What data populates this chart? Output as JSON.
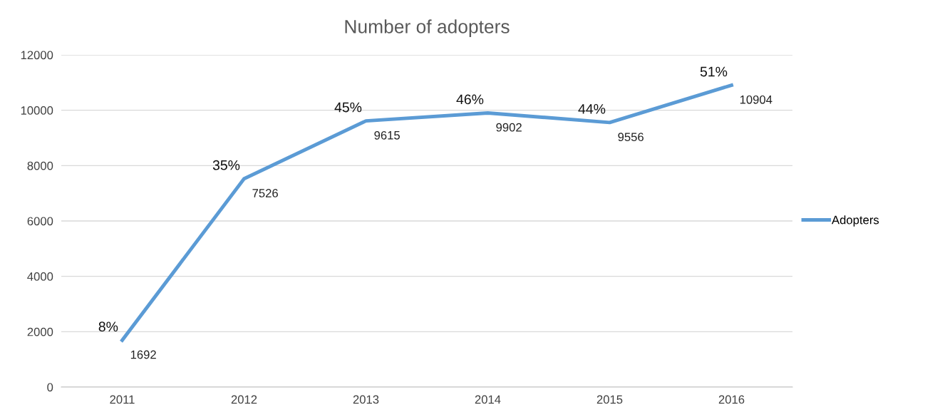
{
  "chart_data": {
    "type": "line",
    "title": "Number of adopters",
    "categories": [
      "2011",
      "2012",
      "2013",
      "2014",
      "2015",
      "2016"
    ],
    "series": [
      {
        "name": "Adopters",
        "color": "#5b9bd5",
        "values": [
          1692,
          7526,
          9615,
          9902,
          9556,
          10904
        ]
      }
    ],
    "ylim": [
      0,
      12000
    ],
    "yticks": [
      0,
      2000,
      4000,
      6000,
      8000,
      10000,
      12000
    ],
    "grid": "y",
    "legend": "right",
    "marker": "none",
    "line_style": "solid",
    "data_labels": true,
    "annotations": [
      {
        "text": "8%",
        "x": "2011",
        "y": 1692
      },
      {
        "text": "35%",
        "x": "2012",
        "y": 7526
      },
      {
        "text": "45%",
        "x": "2013",
        "y": 9615
      },
      {
        "text": "46%",
        "x": "2014",
        "y": 9902
      },
      {
        "text": "44%",
        "x": "2015",
        "y": 9556
      },
      {
        "text": "51%",
        "x": "2016",
        "y": 10904
      }
    ]
  }
}
